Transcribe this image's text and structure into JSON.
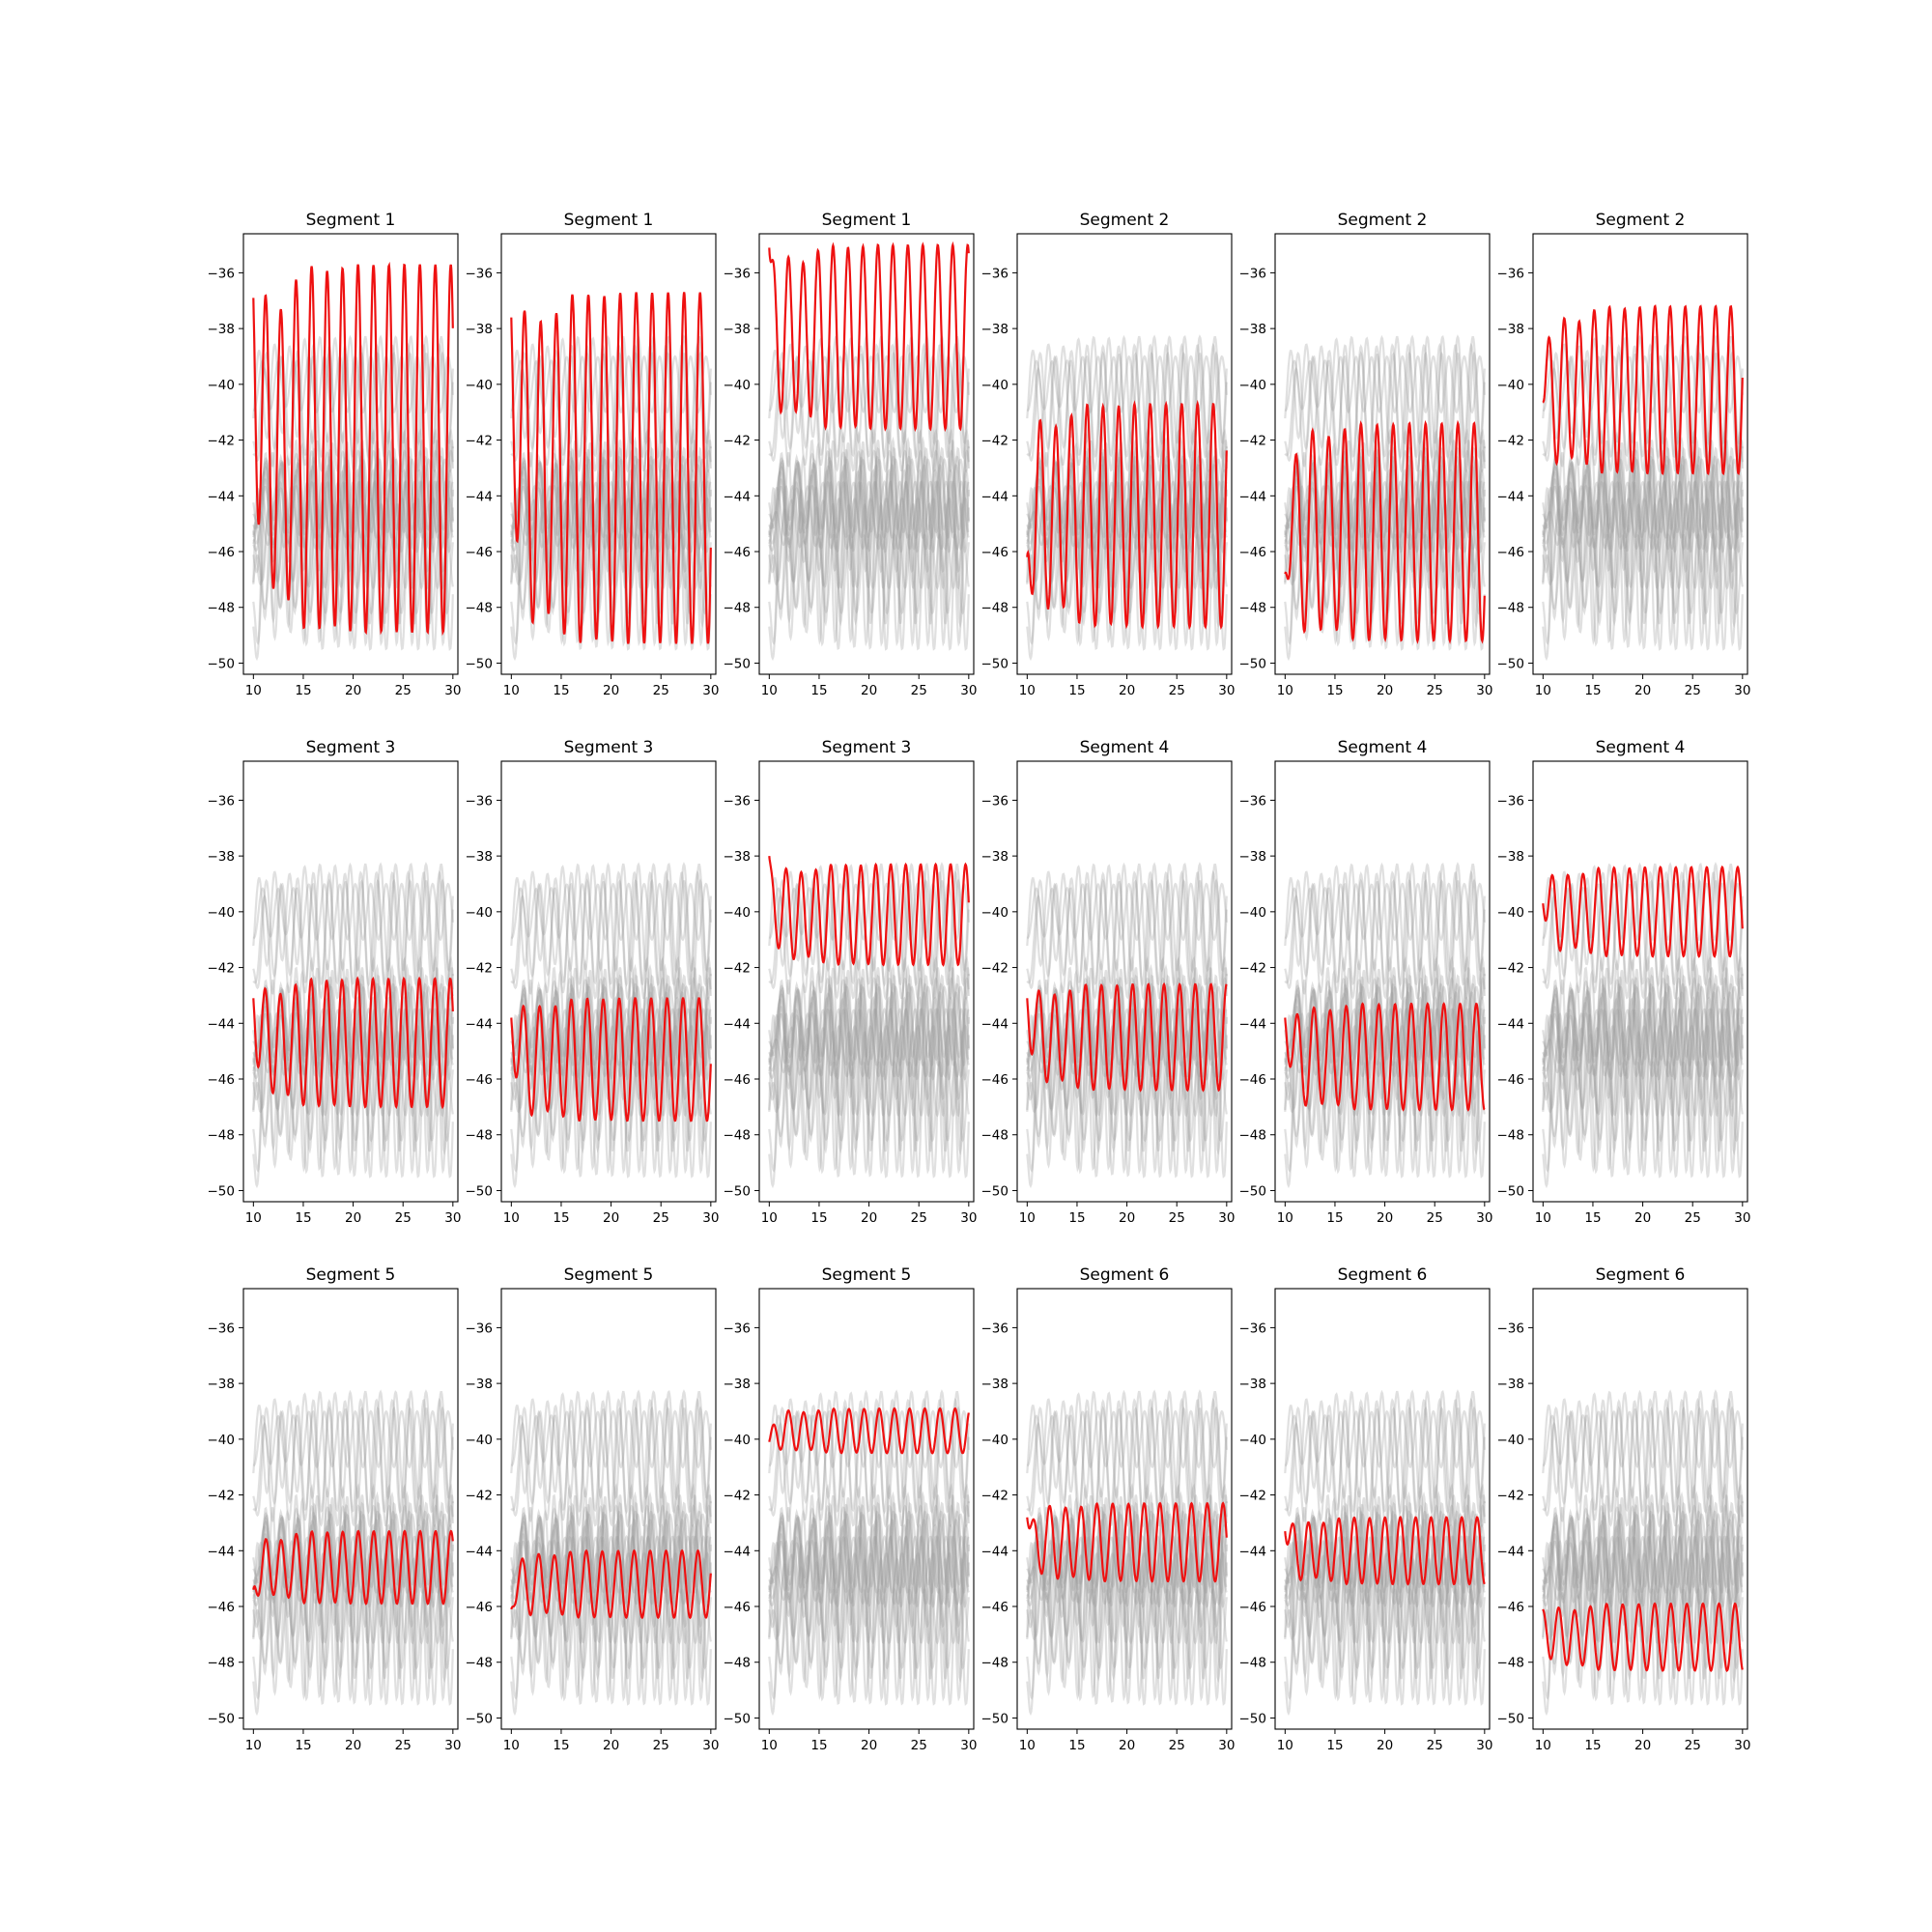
{
  "chart_data": {
    "type": "line",
    "layout": "grid 3x6 small multiples",
    "xlim": [
      9,
      30.5
    ],
    "ylim": [
      -50.4,
      -34.6
    ],
    "xticks": [
      10,
      15,
      20,
      25,
      30
    ],
    "yticks": [
      -36,
      -38,
      -40,
      -42,
      -44,
      -46,
      -48,
      -50
    ],
    "x_range": [
      10,
      30
    ],
    "grid": false,
    "legend": "none",
    "colors": {
      "highlight": "#ee1111",
      "background_traces": "#a0a0a0"
    },
    "background_traces": [
      {
        "base": -45.5,
        "amp": 3.8,
        "period": 1.55,
        "phase": 0.2,
        "start_dev": 3.0
      },
      {
        "base": -45.9,
        "amp": 3.6,
        "period": 1.6,
        "phase": 1.1,
        "start_dev": 2.0
      },
      {
        "base": -45.3,
        "amp": 3.3,
        "period": 1.5,
        "phase": 2.0,
        "start_dev": 2.5
      },
      {
        "base": -40.6,
        "amp": 2.0,
        "period": 1.58,
        "phase": 0.7,
        "start_dev": 1.5
      },
      {
        "base": -41.0,
        "amp": 2.1,
        "period": 1.62,
        "phase": 2.4,
        "start_dev": 1.0
      },
      {
        "base": -40.2,
        "amp": 1.9,
        "period": 1.52,
        "phase": 1.8,
        "start_dev": 0.5
      },
      {
        "base": -44.9,
        "amp": 1.8,
        "period": 1.55,
        "phase": 0.4,
        "start_dev": 0.8
      },
      {
        "base": -44.3,
        "amp": 1.7,
        "period": 1.6,
        "phase": 1.5,
        "start_dev": 0.6
      },
      {
        "base": -45.4,
        "amp": 1.9,
        "period": 1.5,
        "phase": 2.9,
        "start_dev": 0.9
      },
      {
        "base": -44.7,
        "amp": 1.2,
        "period": 1.57,
        "phase": 0.9,
        "start_dev": 0.7
      },
      {
        "base": -44.0,
        "amp": 1.3,
        "period": 1.63,
        "phase": 2.2,
        "start_dev": 0.5
      },
      {
        "base": -40.0,
        "amp": 1.0,
        "period": 1.55,
        "phase": 1.3,
        "start_dev": 0.3
      },
      {
        "base": -43.8,
        "amp": 1.4,
        "period": 1.55,
        "phase": 0.1,
        "start_dev": 0.5
      },
      {
        "base": -44.2,
        "amp": 1.3,
        "period": 1.6,
        "phase": 1.9,
        "start_dev": 0.4
      },
      {
        "base": -46.8,
        "amp": 1.4,
        "period": 1.52,
        "phase": 2.6,
        "start_dev": 0.6
      },
      {
        "base": -45.0,
        "amp": 0.9,
        "period": 1.58,
        "phase": 3.1,
        "start_dev": 0.5
      },
      {
        "base": -44.5,
        "amp": 1.0,
        "period": 1.54,
        "phase": 1.6,
        "start_dev": 0.4
      },
      {
        "base": -45.8,
        "amp": 1.5,
        "period": 1.61,
        "phase": 0.5,
        "start_dev": 0.6
      }
    ],
    "panels": [
      {
        "title": "Segment 1",
        "highlight": {
          "base": -42.3,
          "amp": 6.6,
          "period": 1.55,
          "phase": 0.2,
          "start": -36.9
        }
      },
      {
        "title": "Segment 1",
        "highlight": {
          "base": -43.0,
          "amp": 6.3,
          "period": 1.6,
          "phase": 1.1,
          "start": -37.6
        }
      },
      {
        "title": "Segment 1",
        "highlight": {
          "base": -38.3,
          "amp": 3.3,
          "period": 1.5,
          "phase": 2.0,
          "start": -35.1
        }
      },
      {
        "title": "Segment 2",
        "highlight": {
          "base": -44.7,
          "amp": 4.0,
          "period": 1.58,
          "phase": 0.7,
          "start": -46.2
        }
      },
      {
        "title": "Segment 2",
        "highlight": {
          "base": -45.3,
          "amp": 3.9,
          "period": 1.62,
          "phase": 2.4,
          "start": -46.8
        }
      },
      {
        "title": "Segment 2",
        "highlight": {
          "base": -40.2,
          "amp": 3.0,
          "period": 1.52,
          "phase": 1.8,
          "start": -40.6
        }
      },
      {
        "title": "Segment 3",
        "highlight": {
          "base": -44.7,
          "amp": 2.3,
          "period": 1.55,
          "phase": 0.4,
          "start": -43.1
        }
      },
      {
        "title": "Segment 3",
        "highlight": {
          "base": -45.3,
          "amp": 2.2,
          "period": 1.6,
          "phase": 1.5,
          "start": -43.8
        }
      },
      {
        "title": "Segment 3",
        "highlight": {
          "base": -40.1,
          "amp": 1.8,
          "period": 1.5,
          "phase": 2.9,
          "start": -38.0
        }
      },
      {
        "title": "Segment 4",
        "highlight": {
          "base": -44.5,
          "amp": 1.9,
          "period": 1.57,
          "phase": 0.9,
          "start": -43.1
        }
      },
      {
        "title": "Segment 4",
        "highlight": {
          "base": -45.2,
          "amp": 1.9,
          "period": 1.63,
          "phase": 2.2,
          "start": -43.8
        }
      },
      {
        "title": "Segment 4",
        "highlight": {
          "base": -40.0,
          "amp": 1.6,
          "period": 1.55,
          "phase": 1.3,
          "start": -39.7
        }
      },
      {
        "title": "Segment 5",
        "highlight": {
          "base": -44.6,
          "amp": 1.3,
          "period": 1.55,
          "phase": 0.1,
          "start": -45.4
        }
      },
      {
        "title": "Segment 5",
        "highlight": {
          "base": -45.2,
          "amp": 1.2,
          "period": 1.6,
          "phase": 1.9,
          "start": -46.1
        }
      },
      {
        "title": "Segment 5",
        "highlight": {
          "base": -39.7,
          "amp": 0.8,
          "period": 1.52,
          "phase": 2.6,
          "start": -40.1
        }
      },
      {
        "title": "Segment 6",
        "highlight": {
          "base": -43.7,
          "amp": 1.4,
          "period": 1.58,
          "phase": 3.1,
          "start": -42.8
        }
      },
      {
        "title": "Segment 6",
        "highlight": {
          "base": -44.0,
          "amp": 1.2,
          "period": 1.54,
          "phase": 1.6,
          "start": -43.3
        }
      },
      {
        "title": "Segment 6",
        "highlight": {
          "base": -47.1,
          "amp": 1.2,
          "period": 1.61,
          "phase": 0.5,
          "start": -46.1
        }
      }
    ]
  }
}
